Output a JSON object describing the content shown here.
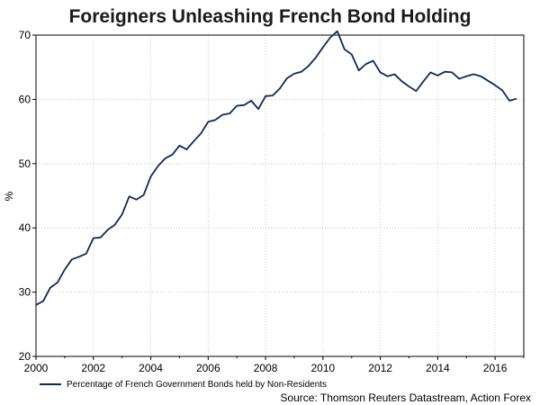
{
  "chart_data": {
    "type": "line",
    "title": "Foreigners Unleashing French Bond Holding",
    "ylabel": "%",
    "xlim": [
      2000,
      2017
    ],
    "ylim": [
      20,
      70
    ],
    "x_ticks": [
      2000,
      2002,
      2004,
      2006,
      2008,
      2010,
      2012,
      2014,
      2016
    ],
    "y_ticks": [
      20,
      30,
      40,
      50,
      60,
      70
    ],
    "grid": true,
    "legend_position": "bottom-left",
    "colors": {
      "line": "#0e2a52",
      "grid": "#bbbbbb",
      "axis": "#000000"
    },
    "series": [
      {
        "name": "Percentage of French Government Bonds held by Non-Residents",
        "x": [
          2000.0,
          2000.25,
          2000.5,
          2000.75,
          2001.0,
          2001.25,
          2001.5,
          2001.75,
          2002.0,
          2002.25,
          2002.5,
          2002.75,
          2003.0,
          2003.25,
          2003.5,
          2003.75,
          2004.0,
          2004.25,
          2004.5,
          2004.75,
          2005.0,
          2005.25,
          2005.5,
          2005.75,
          2006.0,
          2006.25,
          2006.5,
          2006.75,
          2007.0,
          2007.25,
          2007.5,
          2007.75,
          2008.0,
          2008.25,
          2008.5,
          2008.75,
          2009.0,
          2009.25,
          2009.5,
          2009.75,
          2010.0,
          2010.25,
          2010.5,
          2010.75,
          2011.0,
          2011.25,
          2011.5,
          2011.75,
          2012.0,
          2012.25,
          2012.5,
          2012.75,
          2013.0,
          2013.25,
          2013.5,
          2013.75,
          2014.0,
          2014.25,
          2014.5,
          2014.75,
          2015.0,
          2015.25,
          2015.5,
          2015.75,
          2016.0,
          2016.25,
          2016.5,
          2016.75
        ],
        "values": [
          28.0,
          28.6,
          30.7,
          31.5,
          33.5,
          35.1,
          35.5,
          36.0,
          38.4,
          38.5,
          39.7,
          40.5,
          42.1,
          44.9,
          44.4,
          45.1,
          48.0,
          49.6,
          50.8,
          51.4,
          52.8,
          52.2,
          53.5,
          54.7,
          56.5,
          56.8,
          57.6,
          57.8,
          59.0,
          59.1,
          59.8,
          58.5,
          60.5,
          60.6,
          61.7,
          63.3,
          64.0,
          64.3,
          65.2,
          66.5,
          68.1,
          69.6,
          70.6,
          67.8,
          67.0,
          64.5,
          65.5,
          66.0,
          64.2,
          63.6,
          63.9,
          62.8,
          62.0,
          61.3,
          62.8,
          64.2,
          63.7,
          64.3,
          64.2,
          63.2,
          63.6,
          63.9,
          63.6,
          62.9,
          62.2,
          61.4,
          59.8,
          60.1
        ]
      }
    ],
    "source": "Source: Thomson Reuters Datastream, Action Forex"
  }
}
